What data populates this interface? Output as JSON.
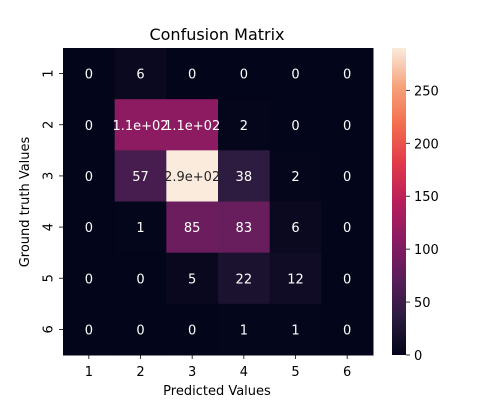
{
  "chart_data": {
    "type": "heatmap",
    "title": "Confusion Matrix",
    "xlabel": "Predicted Values",
    "ylabel": "Ground truth Values",
    "x_categories": [
      "1",
      "2",
      "3",
      "4",
      "5",
      "6"
    ],
    "y_categories": [
      "1",
      "2",
      "3",
      "4",
      "5",
      "6"
    ],
    "values": [
      [
        0,
        6,
        0,
        0,
        0,
        0
      ],
      [
        0,
        110,
        110,
        2,
        0,
        0
      ],
      [
        0,
        57,
        290,
        38,
        2,
        0
      ],
      [
        0,
        1,
        85,
        83,
        6,
        0
      ],
      [
        0,
        0,
        5,
        22,
        12,
        0
      ],
      [
        0,
        0,
        0,
        1,
        1,
        0
      ]
    ],
    "value_labels": [
      [
        "0",
        "6",
        "0",
        "0",
        "0",
        "0"
      ],
      [
        "0",
        "1.1e+02",
        "1.1e+02",
        "2",
        "0",
        "0"
      ],
      [
        "0",
        "57",
        "2.9e+02",
        "38",
        "2",
        "0"
      ],
      [
        "0",
        "1",
        "85",
        "83",
        "6",
        "0"
      ],
      [
        "0",
        "0",
        "5",
        "22",
        "12",
        "0"
      ],
      [
        "0",
        "0",
        "0",
        "1",
        "1",
        "0"
      ]
    ],
    "colorbar": {
      "range": [
        0,
        290
      ],
      "ticks": [
        0,
        50,
        100,
        150,
        200,
        250
      ],
      "colormap": "rocket"
    },
    "grid": false,
    "legend": "colorbar-right"
  }
}
